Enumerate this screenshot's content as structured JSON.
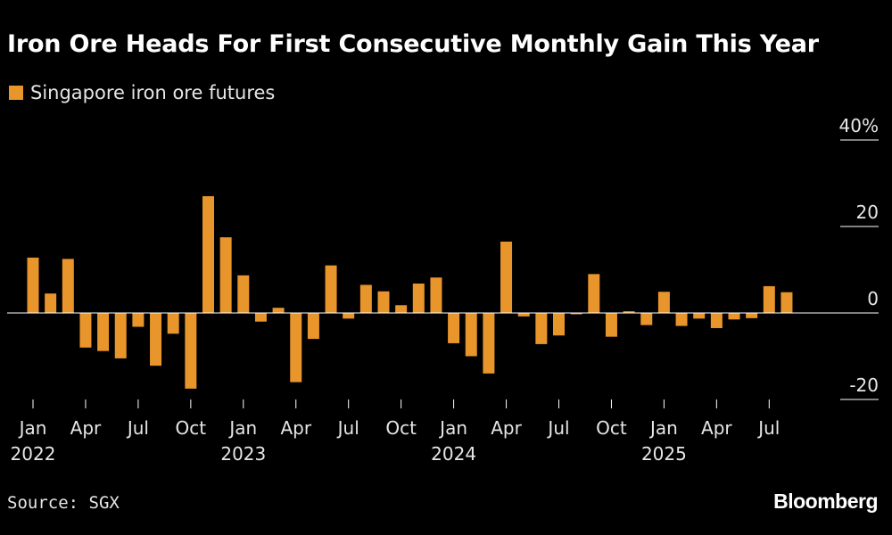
{
  "title": "Iron Ore Heads For First Consecutive Monthly Gain This Year",
  "source": "Source: SGX",
  "brand": "Bloomberg",
  "colors": {
    "bar": "#e8952b",
    "background": "#000000",
    "text": "#ffffff",
    "axis": "#ffffff"
  },
  "chart_data": {
    "type": "bar",
    "title": "Iron Ore Heads For First Consecutive Monthly Gain This Year",
    "ylabel": "",
    "xlabel": "",
    "ylim": [
      -22,
      44
    ],
    "yticks": [
      {
        "value": 40,
        "label": "40%"
      },
      {
        "value": 20,
        "label": "20"
      },
      {
        "value": 0,
        "label": "0"
      },
      {
        "value": -20,
        "label": "-20"
      }
    ],
    "xticks": [
      {
        "index": 0,
        "month": "Jan",
        "year": "2022"
      },
      {
        "index": 3,
        "month": "Apr",
        "year": ""
      },
      {
        "index": 6,
        "month": "Jul",
        "year": ""
      },
      {
        "index": 9,
        "month": "Oct",
        "year": ""
      },
      {
        "index": 12,
        "month": "Jan",
        "year": "2023"
      },
      {
        "index": 15,
        "month": "Apr",
        "year": ""
      },
      {
        "index": 18,
        "month": "Jul",
        "year": ""
      },
      {
        "index": 21,
        "month": "Oct",
        "year": ""
      },
      {
        "index": 24,
        "month": "Jan",
        "year": "2024"
      },
      {
        "index": 27,
        "month": "Apr",
        "year": ""
      },
      {
        "index": 30,
        "month": "Jul",
        "year": ""
      },
      {
        "index": 33,
        "month": "Oct",
        "year": ""
      },
      {
        "index": 36,
        "month": "Jan",
        "year": "2025"
      },
      {
        "index": 39,
        "month": "Apr",
        "year": ""
      },
      {
        "index": 42,
        "month": "Jul",
        "year": ""
      }
    ],
    "legend_position": "top-left",
    "series": [
      {
        "name": "Singapore iron ore futures",
        "categories": [
          "2022-01",
          "2022-02",
          "2022-03",
          "2022-04",
          "2022-05",
          "2022-06",
          "2022-07",
          "2022-08",
          "2022-09",
          "2022-10",
          "2022-11",
          "2022-12",
          "2023-01",
          "2023-02",
          "2023-03",
          "2023-04",
          "2023-05",
          "2023-06",
          "2023-07",
          "2023-08",
          "2023-09",
          "2023-10",
          "2023-11",
          "2023-12",
          "2024-01",
          "2024-02",
          "2024-03",
          "2024-04",
          "2024-05",
          "2024-06",
          "2024-07",
          "2024-08",
          "2024-09",
          "2024-10",
          "2024-11",
          "2024-12",
          "2025-01",
          "2025-02",
          "2025-03",
          "2025-04",
          "2025-05",
          "2025-06",
          "2025-07",
          "2025-08"
        ],
        "values": [
          12.8,
          4.5,
          12.5,
          -8.0,
          -8.8,
          -10.5,
          -3.2,
          -12.2,
          -4.8,
          -17.5,
          27.0,
          17.5,
          8.7,
          -2.0,
          1.2,
          -16.0,
          -6.0,
          11.0,
          -1.3,
          6.5,
          5.0,
          1.8,
          6.8,
          8.2,
          -7.0,
          -10.0,
          -14.0,
          16.5,
          -0.8,
          -7.2,
          -5.2,
          -0.3,
          9.0,
          -5.5,
          0.4,
          -2.8,
          4.9,
          -3.0,
          -1.3,
          -3.5,
          -1.5,
          -1.2,
          6.2,
          4.8
        ]
      }
    ]
  }
}
